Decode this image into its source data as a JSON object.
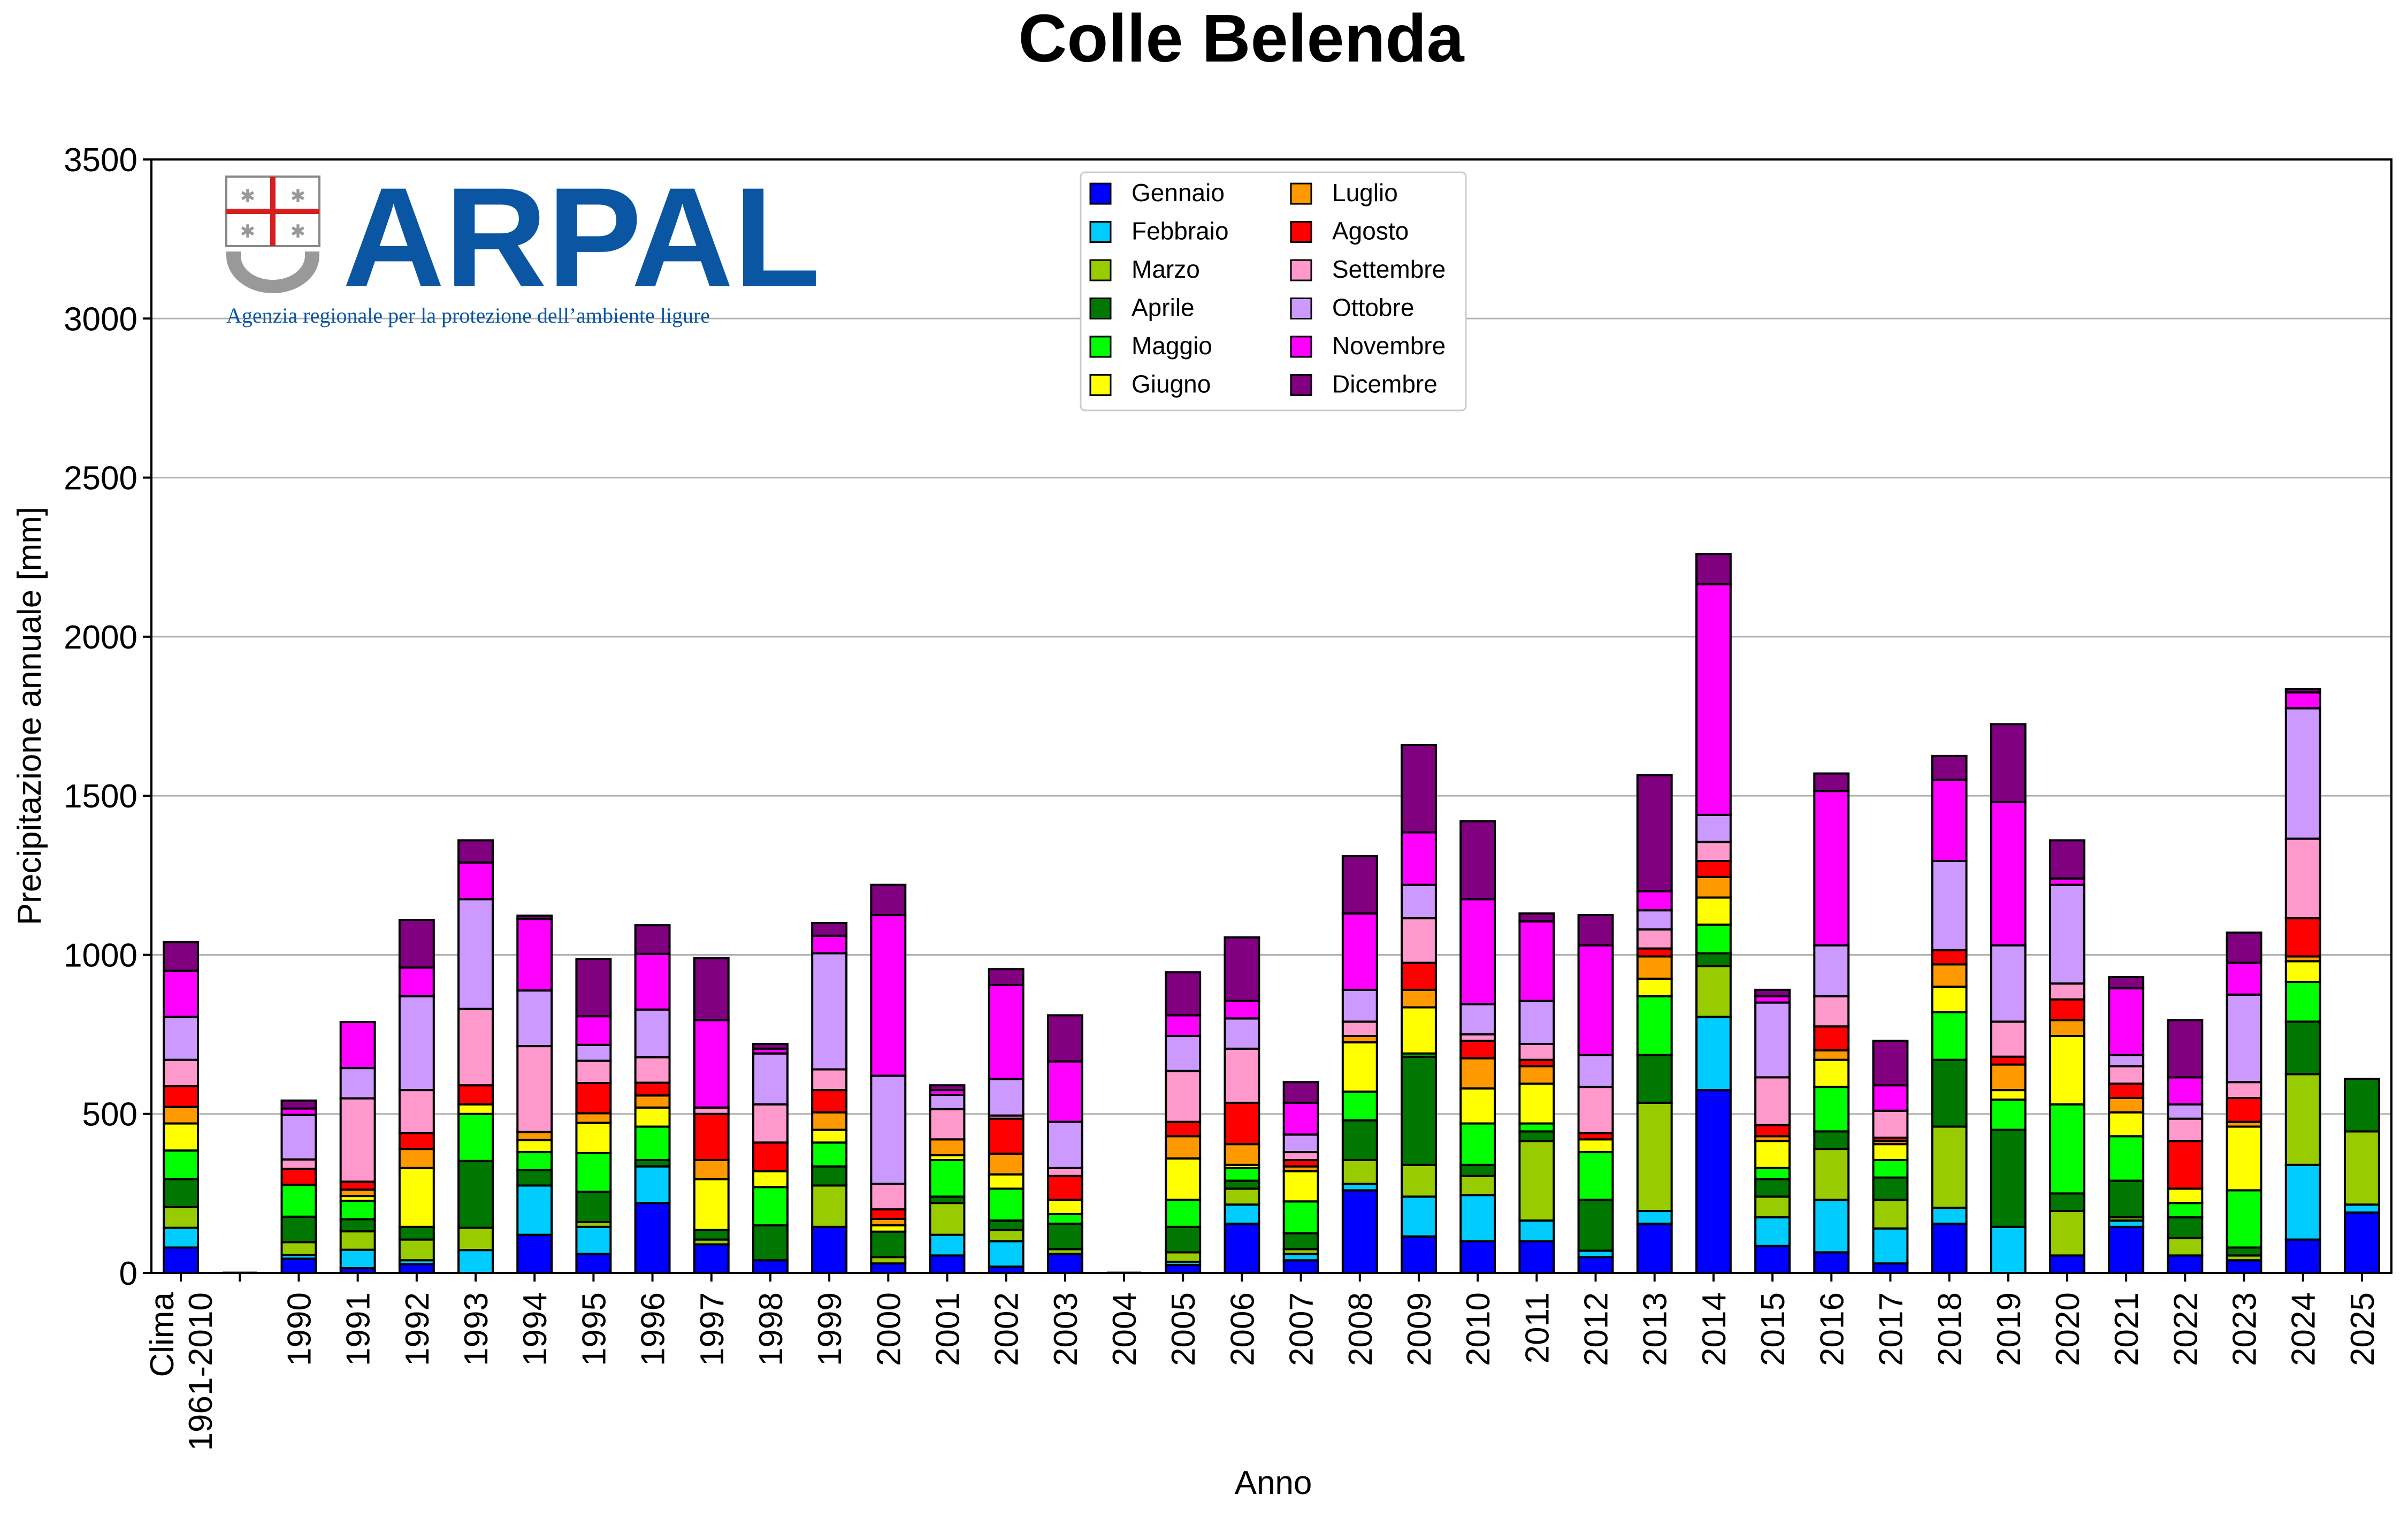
{
  "chart_data": {
    "type": "bar",
    "stacked": true,
    "title": "Colle Belenda",
    "xlabel": "Anno",
    "ylabel": "Precipitazione annuale [mm]",
    "ylim": [
      0,
      3500
    ],
    "yticks": [
      0,
      500,
      1000,
      1500,
      2000,
      2500,
      3000,
      3500
    ],
    "grid": "horizontal",
    "legend_position": "top-center",
    "logo": {
      "text": "ARPAL",
      "subtitle": "Agenzia regionale per la protezione dell’ambiente ligure",
      "color": "#0a56a3"
    },
    "categories": [
      {
        "label": "Clima\n1961-2010",
        "values": [
          80,
          62,
          65,
          88,
          90,
          85,
          52,
          65,
          83,
          135,
          145,
          90
        ]
      },
      {
        "label": "",
        "values": [
          0,
          0,
          0,
          0,
          0,
          0,
          0,
          0,
          0,
          0,
          0,
          0
        ]
      },
      {
        "label": "1990",
        "values": [
          45,
          12,
          40,
          80,
          100,
          0,
          0,
          50,
          30,
          140,
          20,
          25
        ]
      },
      {
        "label": "1991",
        "values": [
          15,
          58,
          58,
          38,
          58,
          15,
          20,
          25,
          262,
          95,
          145,
          0
        ]
      },
      {
        "label": "1992",
        "values": [
          28,
          12,
          65,
          40,
          0,
          185,
          60,
          50,
          135,
          295,
          90,
          150
        ]
      },
      {
        "label": "1993",
        "values": [
          0,
          72,
          70,
          210,
          148,
          30,
          0,
          60,
          240,
          345,
          115,
          70
        ]
      },
      {
        "label": "1994",
        "values": [
          120,
          155,
          0,
          48,
          57,
          38,
          25,
          0,
          270,
          175,
          225,
          10
        ]
      },
      {
        "label": "1995",
        "values": [
          60,
          85,
          15,
          95,
          122,
          95,
          30,
          95,
          70,
          50,
          90,
          180
        ]
      },
      {
        "label": "1996",
        "values": [
          220,
          115,
          0,
          20,
          105,
          60,
          38,
          40,
          80,
          150,
          175,
          90
        ]
      },
      {
        "label": "1997",
        "values": [
          90,
          0,
          15,
          30,
          0,
          160,
          60,
          145,
          20,
          0,
          275,
          195
        ]
      },
      {
        "label": "1998",
        "values": [
          40,
          0,
          0,
          110,
          120,
          50,
          0,
          90,
          120,
          160,
          15,
          15
        ]
      },
      {
        "label": "1999",
        "values": [
          145,
          0,
          130,
          60,
          75,
          40,
          55,
          70,
          65,
          365,
          55,
          40
        ]
      },
      {
        "label": "2000",
        "values": [
          30,
          0,
          20,
          80,
          0,
          20,
          20,
          30,
          80,
          340,
          505,
          95
        ]
      },
      {
        "label": "2001",
        "values": [
          55,
          65,
          100,
          20,
          115,
          15,
          50,
          0,
          95,
          45,
          15,
          15
        ]
      },
      {
        "label": "2002",
        "values": [
          20,
          80,
          35,
          30,
          100,
          45,
          65,
          110,
          10,
          115,
          295,
          50
        ]
      },
      {
        "label": "2003",
        "values": [
          60,
          0,
          15,
          80,
          30,
          45,
          0,
          75,
          25,
          145,
          190,
          145
        ]
      },
      {
        "label": "2004",
        "values": [
          0,
          0,
          0,
          0,
          0,
          0,
          0,
          0,
          0,
          0,
          0,
          0
        ]
      },
      {
        "label": "2005",
        "values": [
          25,
          10,
          30,
          80,
          85,
          130,
          70,
          45,
          160,
          110,
          65,
          135
        ]
      },
      {
        "label": "2006",
        "values": [
          155,
          60,
          50,
          25,
          40,
          10,
          65,
          130,
          170,
          95,
          55,
          200
        ]
      },
      {
        "label": "2007",
        "values": [
          40,
          20,
          15,
          50,
          100,
          95,
          15,
          20,
          25,
          55,
          100,
          65
        ]
      },
      {
        "label": "2008",
        "values": [
          260,
          20,
          75,
          125,
          90,
          155,
          20,
          0,
          45,
          100,
          240,
          180
        ]
      },
      {
        "label": "2009",
        "values": [
          115,
          125,
          100,
          340,
          10,
          145,
          55,
          85,
          140,
          105,
          165,
          275
        ]
      },
      {
        "label": "2010",
        "values": [
          100,
          145,
          60,
          35,
          130,
          110,
          95,
          55,
          20,
          95,
          330,
          245
        ]
      },
      {
        "label": "2011",
        "values": [
          100,
          65,
          250,
          30,
          25,
          125,
          55,
          20,
          50,
          135,
          250,
          25
        ]
      },
      {
        "label": "2012",
        "values": [
          50,
          20,
          0,
          160,
          150,
          40,
          0,
          20,
          145,
          100,
          345,
          95
        ]
      },
      {
        "label": "2013",
        "values": [
          155,
          40,
          340,
          150,
          185,
          55,
          70,
          25,
          60,
          60,
          60,
          365
        ]
      },
      {
        "label": "2014",
        "values": [
          575,
          230,
          160,
          40,
          90,
          85,
          65,
          50,
          60,
          85,
          725,
          95
        ]
      },
      {
        "label": "2015",
        "values": [
          85,
          90,
          65,
          55,
          35,
          85,
          15,
          35,
          150,
          235,
          20,
          20
        ]
      },
      {
        "label": "2016",
        "values": [
          65,
          165,
          160,
          55,
          140,
          85,
          30,
          75,
          95,
          160,
          485,
          55
        ]
      },
      {
        "label": "2017",
        "values": [
          30,
          110,
          90,
          70,
          55,
          50,
          10,
          10,
          85,
          0,
          80,
          140
        ]
      },
      {
        "label": "2018",
        "values": [
          155,
          50,
          255,
          210,
          150,
          80,
          70,
          45,
          0,
          280,
          255,
          75
        ]
      },
      {
        "label": "2019",
        "values": [
          0,
          145,
          0,
          305,
          95,
          30,
          80,
          25,
          110,
          240,
          450,
          245
        ]
      },
      {
        "label": "2020",
        "values": [
          55,
          0,
          140,
          55,
          280,
          215,
          50,
          65,
          50,
          310,
          20,
          120
        ]
      },
      {
        "label": "2021",
        "values": [
          145,
          20,
          10,
          115,
          140,
          75,
          45,
          45,
          55,
          35,
          210,
          35
        ]
      },
      {
        "label": "2022",
        "values": [
          55,
          0,
          55,
          65,
          45,
          45,
          0,
          150,
          70,
          45,
          85,
          180
        ]
      },
      {
        "label": "2023",
        "values": [
          40,
          0,
          15,
          25,
          180,
          200,
          15,
          75,
          50,
          275,
          100,
          95
        ]
      },
      {
        "label": "2024",
        "values": [
          105,
          235,
          285,
          165,
          125,
          65,
          15,
          120,
          250,
          410,
          50,
          10
        ]
      },
      {
        "label": "2025",
        "values": [
          190,
          25,
          230,
          165,
          0,
          0,
          0,
          0,
          0,
          0,
          0,
          0
        ]
      }
    ],
    "series": [
      {
        "name": "Gennaio",
        "color": "#0000ff"
      },
      {
        "name": "Febbraio",
        "color": "#00ccff"
      },
      {
        "name": "Marzo",
        "color": "#99cc00"
      },
      {
        "name": "Aprile",
        "color": "#007700"
      },
      {
        "name": "Maggio",
        "color": "#00ff00"
      },
      {
        "name": "Giugno",
        "color": "#ffff00"
      },
      {
        "name": "Luglio",
        "color": "#ff9900"
      },
      {
        "name": "Agosto",
        "color": "#ff0000"
      },
      {
        "name": "Settembre",
        "color": "#ff99cc"
      },
      {
        "name": "Ottobre",
        "color": "#cc99ff"
      },
      {
        "name": "Novembre",
        "color": "#ff00ff"
      },
      {
        "name": "Dicembre",
        "color": "#800080"
      }
    ]
  }
}
